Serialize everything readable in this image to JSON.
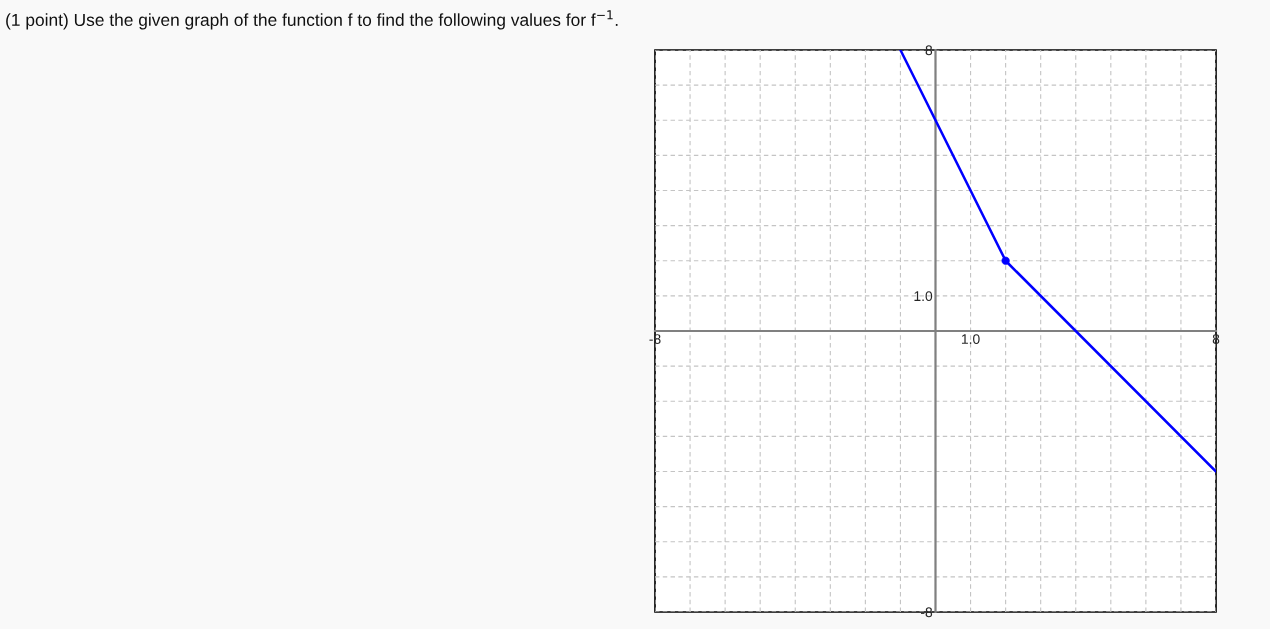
{
  "chart_data": {
    "type": "line",
    "title": "(1 point) Use the given graph of the function f to find the following values for f$^{−1}$.",
    "series": [
      {
        "color": "#0000ff",
        "x": [
          -1,
          2,
          8
        ],
        "values": [
          8,
          2,
          -4
        ],
        "marker": "none",
        "line_style": "solid"
      },
      {
        "type": "scatter",
        "color": "#0000ff",
        "x": [
          2
        ],
        "values": [
          2
        ],
        "marker": "circle"
      }
    ],
    "xlim": [
      -8,
      8
    ],
    "ylim": [
      -8,
      8
    ],
    "xticks": [
      -8,
      {
        "value": -7,
        "label": null
      },
      {
        "value": -6,
        "label": null
      },
      {
        "value": -5,
        "label": null
      },
      {
        "value": -4,
        "label": null
      },
      {
        "value": -3,
        "label": null
      },
      {
        "value": -2,
        "label": null
      },
      {
        "value": -1,
        "label": null
      },
      {
        "value": 0,
        "label": null
      },
      {
        "value": 1,
        "label": "1.0"
      },
      {
        "value": 2,
        "label": null
      },
      {
        "value": 3,
        "label": null
      },
      {
        "value": 4,
        "label": null
      },
      {
        "value": 5,
        "label": null
      },
      {
        "value": 6,
        "label": null
      },
      {
        "value": 7,
        "label": null
      },
      8
    ],
    "yticks": [
      -8,
      {
        "value": -7,
        "label": null
      },
      {
        "value": -6,
        "label": null
      },
      {
        "value": -5,
        "label": null
      },
      {
        "value": -4,
        "label": null
      },
      {
        "value": -3,
        "label": null
      },
      {
        "value": -2,
        "label": null
      },
      {
        "value": -1,
        "label": null
      },
      {
        "value": 0,
        "label": null
      },
      {
        "value": 1,
        "label": "1.0"
      },
      {
        "value": 2,
        "label": null
      },
      {
        "value": 3,
        "label": null
      },
      {
        "value": 4,
        "label": null
      },
      {
        "value": 5,
        "label": null
      },
      {
        "value": 6,
        "label": null
      },
      {
        "value": 7,
        "label": null
      },
      8
    ],
    "grid": true
  }
}
